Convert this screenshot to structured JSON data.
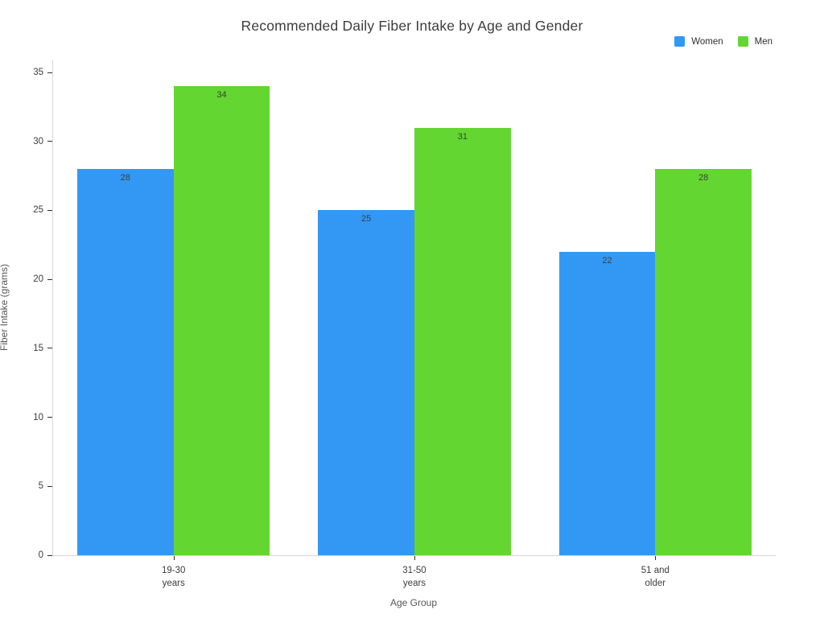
{
  "title": "Recommended Daily Fiber Intake by Age and Gender",
  "chart_data": {
    "type": "bar",
    "title": "Recommended Daily Fiber Intake by Age and Gender",
    "categories": [
      "19-30 years",
      "31-50 years",
      "51 and older"
    ],
    "category_label_lines": [
      [
        "19-30",
        "years"
      ],
      [
        "31-50",
        "years"
      ],
      [
        "51 and",
        "older"
      ]
    ],
    "series": [
      {
        "name": "Women",
        "color": "#3398F4",
        "values": [
          28,
          25,
          22
        ]
      },
      {
        "name": "Men",
        "color": "#63D631",
        "values": [
          34,
          31,
          28
        ]
      }
    ],
    "xlabel": "Age Group",
    "ylabel": "Fiber Intake (grams)",
    "ylim": [
      0,
      35
    ],
    "yticks": [
      0,
      5,
      10,
      15,
      20,
      25,
      30,
      35
    ],
    "grid": false,
    "bar_value_labels": true,
    "legend_position": "top-right",
    "colors": {
      "background": "#ffffff",
      "spine": "#d6d6d6",
      "tick_mark": "#2f2f2f",
      "tick_label": "#3c3c3c",
      "axis_title": "#565656",
      "title_text": "#3d3d3d",
      "bar_label": "#3e3e3e"
    }
  }
}
